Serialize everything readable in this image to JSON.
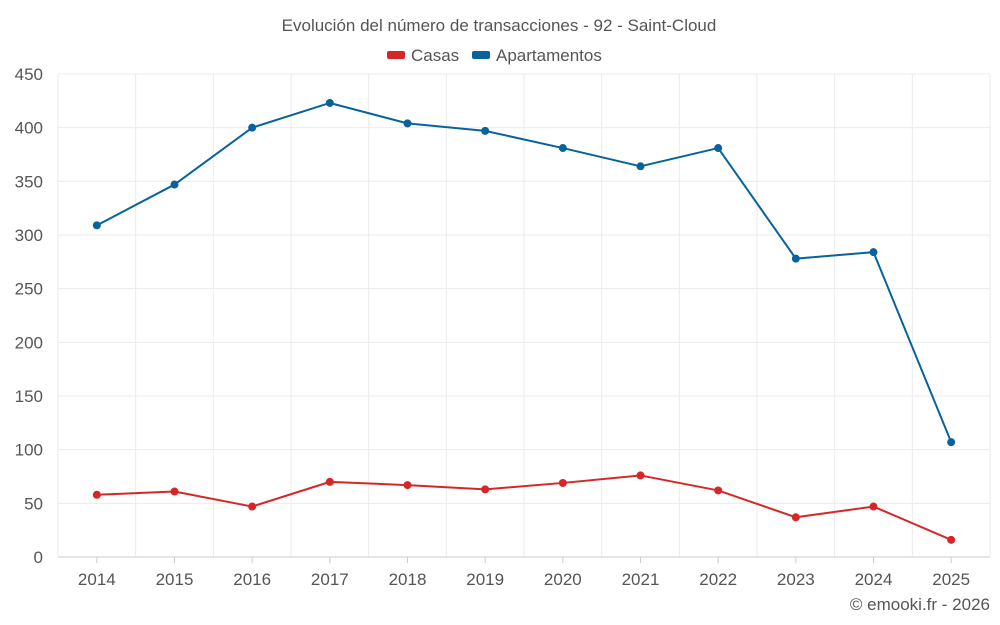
{
  "chart_data": {
    "type": "line",
    "title": "Evolución del número de transacciones - 92 - Saint-Cloud",
    "categories": [
      "2014",
      "2015",
      "2016",
      "2017",
      "2018",
      "2019",
      "2020",
      "2021",
      "2022",
      "2023",
      "2024",
      "2025"
    ],
    "series": [
      {
        "name": "Casas",
        "color": "#d62728",
        "values": [
          58,
          61,
          47,
          70,
          67,
          63,
          69,
          76,
          62,
          37,
          47,
          16
        ]
      },
      {
        "name": "Apartamentos",
        "color": "#08639c",
        "values": [
          309,
          347,
          400,
          423,
          404,
          397,
          381,
          364,
          381,
          278,
          284,
          107
        ]
      }
    ],
    "y_ticks": [
      "0",
      "50",
      "100",
      "150",
      "200",
      "250",
      "300",
      "350",
      "400",
      "450"
    ],
    "ylim": [
      0,
      450
    ],
    "grid": true,
    "legend_position": "top-center"
  },
  "credit": "© emooki.fr - 2026"
}
